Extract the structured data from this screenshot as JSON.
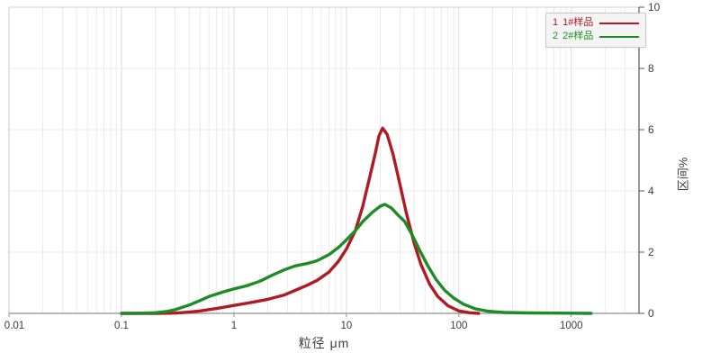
{
  "chart_data": {
    "type": "line",
    "title": "",
    "xlabel": "粒径 μm",
    "ylabel": "区间%",
    "x_scale": "log",
    "xlim": [
      0.01,
      4000
    ],
    "ylim": [
      0,
      10
    ],
    "grid": true,
    "legend_position": "top-right",
    "x_ticks": [
      {
        "value": 0.01,
        "label": "0.01"
      },
      {
        "value": 0.1,
        "label": "0.1"
      },
      {
        "value": 1,
        "label": "1"
      },
      {
        "value": 10,
        "label": "10"
      },
      {
        "value": 100,
        "label": "100"
      },
      {
        "value": 1000,
        "label": "1000"
      }
    ],
    "y_ticks": [
      {
        "value": 0,
        "label": "0"
      },
      {
        "value": 2,
        "label": "2"
      },
      {
        "value": 4,
        "label": "4"
      },
      {
        "value": 6,
        "label": "6"
      },
      {
        "value": 8,
        "label": "8"
      },
      {
        "value": 10,
        "label": "10"
      }
    ],
    "colors": {
      "grid_minor": "#ebebeb",
      "grid_major": "#dadada",
      "frame": "#cccccc",
      "axis_bottom": "#8f8f8f",
      "axis_right": "#555555",
      "tick_label": "#3c3c3c"
    },
    "series": [
      {
        "index": "1",
        "name": "1#样品",
        "color": "#b01a24",
        "points": [
          [
            0.1,
            0
          ],
          [
            0.15,
            0
          ],
          [
            0.2,
            0
          ],
          [
            0.3,
            0.01
          ],
          [
            0.4,
            0.04
          ],
          [
            0.5,
            0.08
          ],
          [
            0.7,
            0.16
          ],
          [
            1.0,
            0.26
          ],
          [
            1.4,
            0.35
          ],
          [
            2,
            0.46
          ],
          [
            2.8,
            0.6
          ],
          [
            3.5,
            0.75
          ],
          [
            4.5,
            0.92
          ],
          [
            5.5,
            1.08
          ],
          [
            7,
            1.35
          ],
          [
            8.5,
            1.7
          ],
          [
            10,
            2.1
          ],
          [
            12,
            2.7
          ],
          [
            14,
            3.5
          ],
          [
            16,
            4.4
          ],
          [
            18,
            5.2
          ],
          [
            19.5,
            5.8
          ],
          [
            21,
            6.05
          ],
          [
            23,
            5.85
          ],
          [
            26,
            5.2
          ],
          [
            30,
            4.2
          ],
          [
            34,
            3.3
          ],
          [
            40,
            2.3
          ],
          [
            46,
            1.6
          ],
          [
            55,
            0.95
          ],
          [
            65,
            0.55
          ],
          [
            80,
            0.25
          ],
          [
            100,
            0.08
          ],
          [
            125,
            0.02
          ],
          [
            150,
            0
          ]
        ]
      },
      {
        "index": "2",
        "name": "2#样品",
        "color": "#1e8c26",
        "points": [
          [
            0.1,
            0
          ],
          [
            0.15,
            0.005
          ],
          [
            0.2,
            0.02
          ],
          [
            0.25,
            0.06
          ],
          [
            0.3,
            0.12
          ],
          [
            0.4,
            0.27
          ],
          [
            0.5,
            0.42
          ],
          [
            0.6,
            0.55
          ],
          [
            0.8,
            0.7
          ],
          [
            1.0,
            0.8
          ],
          [
            1.3,
            0.9
          ],
          [
            1.7,
            1.05
          ],
          [
            2.2,
            1.25
          ],
          [
            2.8,
            1.42
          ],
          [
            3.5,
            1.55
          ],
          [
            4.5,
            1.63
          ],
          [
            5.5,
            1.72
          ],
          [
            7,
            1.92
          ],
          [
            8.5,
            2.15
          ],
          [
            10,
            2.4
          ],
          [
            12,
            2.7
          ],
          [
            14,
            3.0
          ],
          [
            17,
            3.3
          ],
          [
            20,
            3.5
          ],
          [
            22,
            3.56
          ],
          [
            25,
            3.45
          ],
          [
            29,
            3.2
          ],
          [
            33,
            3.0
          ],
          [
            38,
            2.6
          ],
          [
            45,
            2.05
          ],
          [
            53,
            1.55
          ],
          [
            63,
            1.1
          ],
          [
            75,
            0.75
          ],
          [
            90,
            0.5
          ],
          [
            110,
            0.3
          ],
          [
            140,
            0.15
          ],
          [
            180,
            0.07
          ],
          [
            250,
            0.03
          ],
          [
            400,
            0.015
          ],
          [
            700,
            0.01
          ],
          [
            1000,
            0.005
          ],
          [
            1500,
            0
          ]
        ]
      }
    ]
  },
  "legend": {
    "rows": [
      {
        "num": "1",
        "label": "1#样品"
      },
      {
        "num": "2",
        "label": "2#样品"
      }
    ]
  }
}
